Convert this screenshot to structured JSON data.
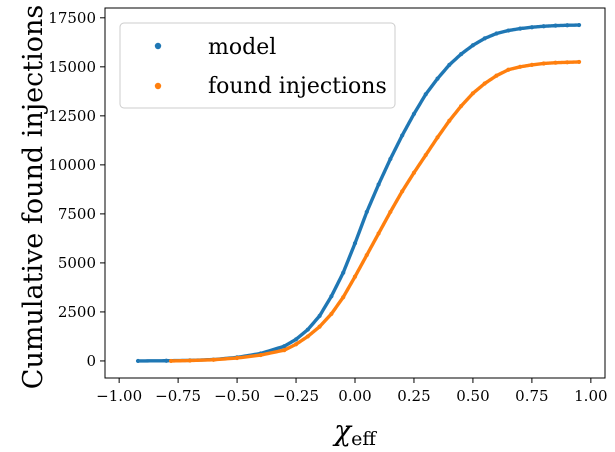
{
  "chart_data": {
    "type": "scatter",
    "title": "",
    "xlabel": "χeff",
    "xlabel_main": "χ",
    "xlabel_sub": "eff",
    "ylabel": "Cumulative found injections",
    "xlim": [
      -1.06,
      1.06
    ],
    "ylim": [
      -870,
      18000
    ],
    "grid": false,
    "legend_position": "top-left",
    "x_ticks": [
      -1.0,
      -0.75,
      -0.5,
      -0.25,
      0.0,
      0.25,
      0.5,
      0.75,
      1.0
    ],
    "x_tick_labels": [
      "−1.00",
      "−0.75",
      "−0.50",
      "−0.25",
      "0.00",
      "0.25",
      "0.50",
      "0.75",
      "1.00"
    ],
    "y_ticks": [
      0,
      2500,
      5000,
      7500,
      10000,
      12500,
      15000,
      17500
    ],
    "y_tick_labels": [
      "0",
      "2500",
      "5000",
      "7500",
      "10000",
      "12500",
      "15000",
      "17500"
    ],
    "series": [
      {
        "name": "model",
        "color": "#1f77b4",
        "x": [
          -0.92,
          -0.8,
          -0.7,
          -0.6,
          -0.5,
          -0.4,
          -0.3,
          -0.25,
          -0.2,
          -0.15,
          -0.1,
          -0.05,
          0.0,
          0.05,
          0.1,
          0.15,
          0.2,
          0.25,
          0.3,
          0.35,
          0.4,
          0.45,
          0.5,
          0.55,
          0.6,
          0.65,
          0.7,
          0.75,
          0.8,
          0.85,
          0.9,
          0.95
        ],
        "y": [
          0,
          10,
          30,
          70,
          180,
          380,
          750,
          1100,
          1600,
          2300,
          3300,
          4500,
          6000,
          7600,
          9000,
          10300,
          11500,
          12600,
          13600,
          14400,
          15100,
          15650,
          16100,
          16450,
          16700,
          16850,
          16950,
          17020,
          17070,
          17100,
          17120,
          17130
        ]
      },
      {
        "name": "found injections",
        "color": "#ff7f0e",
        "x": [
          -0.78,
          -0.7,
          -0.6,
          -0.5,
          -0.4,
          -0.3,
          -0.25,
          -0.2,
          -0.15,
          -0.1,
          -0.05,
          0.0,
          0.05,
          0.1,
          0.15,
          0.2,
          0.25,
          0.3,
          0.35,
          0.4,
          0.45,
          0.5,
          0.55,
          0.6,
          0.65,
          0.7,
          0.75,
          0.8,
          0.85,
          0.9,
          0.95
        ],
        "y": [
          0,
          20,
          60,
          150,
          300,
          550,
          850,
          1250,
          1750,
          2400,
          3250,
          4300,
          5400,
          6500,
          7600,
          8650,
          9600,
          10500,
          11400,
          12250,
          13000,
          13650,
          14150,
          14550,
          14850,
          15000,
          15100,
          15170,
          15210,
          15230,
          15250
        ]
      }
    ]
  }
}
